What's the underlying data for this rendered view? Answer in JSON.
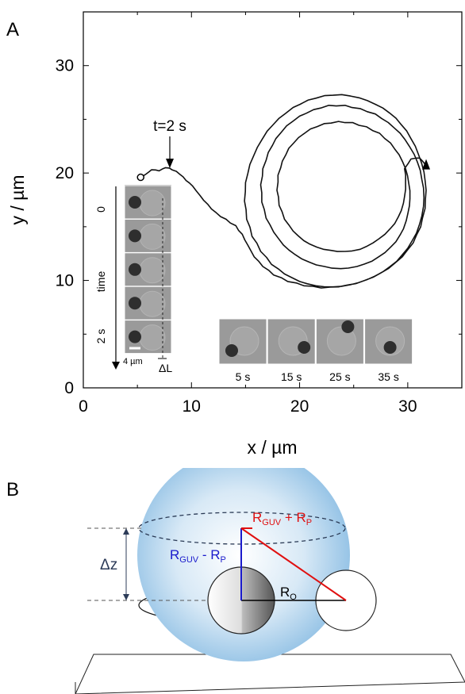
{
  "panel_a": {
    "letter": "A",
    "annotation_time": "t=2 s",
    "left_strip": {
      "top_label": "0",
      "middle_label": "time",
      "bottom_label": "2 s",
      "scale_bar": "4 µm",
      "delta": "ΔL"
    },
    "bottom_frames": [
      "5 s",
      "15 s",
      "25 s",
      "35 s"
    ]
  },
  "panel_b": {
    "letter": "B",
    "delta_z": "Δz",
    "r_sum": {
      "main": "R",
      "sub1": "GUV",
      "mid": " + R",
      "sub2": "P"
    },
    "r_diff": {
      "main": "R",
      "sub1": "GUV",
      "mid": " - R",
      "sub2": "P"
    },
    "r_o": {
      "main": "R",
      "sub": "O"
    }
  },
  "chart_data": {
    "type": "line",
    "title": "",
    "xlabel": "x / µm",
    "ylabel": "y / µm",
    "xlim": [
      0,
      35
    ],
    "ylim": [
      0,
      35
    ],
    "xticks": [
      "0",
      "10",
      "20",
      "30"
    ],
    "yticks": [
      "0",
      "10",
      "20",
      "30"
    ],
    "series": [
      {
        "points": [
          [
            5.3,
            19.6
          ],
          [
            5.8,
            19.9
          ],
          [
            6.3,
            20.3
          ],
          [
            7,
            20.2
          ],
          [
            7.6,
            20.5
          ],
          [
            8.2,
            20.3
          ],
          [
            8.9,
            19.9
          ],
          [
            9.5,
            19.3
          ],
          [
            10.1,
            18.8
          ],
          [
            10.8,
            17.9
          ],
          [
            11.5,
            17.1
          ],
          [
            12.3,
            16.3
          ],
          [
            13.2,
            15.7
          ],
          [
            14.1,
            15.1
          ],
          [
            14.7,
            14.3
          ],
          [
            15.2,
            13.3
          ],
          [
            15.8,
            12.2
          ],
          [
            16.6,
            11.3
          ],
          [
            17.6,
            10.5
          ],
          [
            18.9,
            9.9
          ],
          [
            20.4,
            9.5
          ],
          [
            22,
            9.3
          ],
          [
            23.6,
            9.4
          ],
          [
            25.2,
            9.7
          ],
          [
            26.8,
            10.3
          ],
          [
            28.2,
            11.1
          ],
          [
            29.5,
            12.2
          ],
          [
            30.5,
            13.5
          ],
          [
            31.2,
            15
          ],
          [
            31.6,
            16.7
          ],
          [
            31.7,
            18.4
          ],
          [
            31.5,
            20.1
          ],
          [
            31,
            21.7
          ],
          [
            30.3,
            23.2
          ],
          [
            29.4,
            24.5
          ],
          [
            28.3,
            25.6
          ],
          [
            27,
            26.4
          ],
          [
            25.5,
            27
          ],
          [
            23.9,
            27.3
          ],
          [
            22.3,
            27.2
          ],
          [
            20.8,
            26.8
          ],
          [
            19.4,
            26.1
          ],
          [
            18.1,
            25.1
          ],
          [
            17,
            23.9
          ],
          [
            16.1,
            22.4
          ],
          [
            15.4,
            20.8
          ],
          [
            15,
            19.1
          ],
          [
            14.9,
            17.4
          ],
          [
            15.1,
            15.7
          ],
          [
            15.6,
            14.1
          ],
          [
            16.4,
            12.7
          ],
          [
            17.4,
            11.5
          ],
          [
            18.6,
            10.6
          ],
          [
            20,
            9.9
          ],
          [
            21.5,
            9.5
          ],
          [
            23.1,
            9.4
          ],
          [
            24.7,
            9.6
          ],
          [
            26.3,
            10.1
          ],
          [
            27.7,
            10.8
          ],
          [
            29,
            11.8
          ],
          [
            30,
            13
          ],
          [
            30.8,
            14.4
          ],
          [
            31.3,
            16
          ],
          [
            31.5,
            17.7
          ],
          [
            31.3,
            19.4
          ],
          [
            30.9,
            21
          ],
          [
            30.2,
            22.4
          ],
          [
            29.3,
            23.7
          ],
          [
            28.2,
            24.7
          ],
          [
            27,
            25.5
          ],
          [
            25.6,
            26
          ],
          [
            24.2,
            26.3
          ],
          [
            22.7,
            26.3
          ],
          [
            21.3,
            25.9
          ],
          [
            20,
            25.3
          ],
          [
            18.8,
            24.4
          ],
          [
            17.8,
            23.2
          ],
          [
            17.1,
            21.9
          ],
          [
            16.6,
            20.4
          ],
          [
            16.4,
            18.9
          ],
          [
            16.5,
            17.3
          ],
          [
            16.9,
            15.8
          ],
          [
            17.6,
            14.5
          ],
          [
            18.5,
            13.3
          ],
          [
            19.6,
            12.4
          ],
          [
            20.9,
            11.7
          ],
          [
            22.3,
            11.3
          ],
          [
            23.8,
            11.1
          ],
          [
            25.3,
            11.3
          ],
          [
            26.7,
            11.8
          ],
          [
            27.9,
            12.6
          ],
          [
            28.9,
            13.6
          ],
          [
            29.6,
            14.8
          ],
          [
            30,
            16.2
          ],
          [
            30.2,
            17.6
          ],
          [
            30.1,
            19
          ],
          [
            29.8,
            20.4
          ],
          [
            29.2,
            21.7
          ],
          [
            28.4,
            22.8
          ],
          [
            27.4,
            23.7
          ],
          [
            26.2,
            24.3
          ],
          [
            24.9,
            24.7
          ],
          [
            23.6,
            24.8
          ],
          [
            22.3,
            24.6
          ],
          [
            21,
            24.1
          ],
          [
            19.9,
            23.3
          ],
          [
            19,
            22.3
          ],
          [
            18.4,
            21.1
          ],
          [
            18,
            19.8
          ],
          [
            17.9,
            18.4
          ],
          [
            18.1,
            17
          ],
          [
            18.6,
            15.7
          ],
          [
            19.4,
            14.6
          ],
          [
            20.4,
            13.7
          ],
          [
            21.6,
            13.1
          ],
          [
            22.9,
            12.8
          ],
          [
            24.2,
            12.7
          ],
          [
            25.6,
            12.9
          ],
          [
            26.8,
            13.5
          ],
          [
            27.9,
            14.3
          ],
          [
            28.8,
            15.3
          ],
          [
            29.4,
            16.5
          ],
          [
            29.7,
            17.8
          ],
          [
            29.8,
            19.1
          ],
          [
            29.7,
            20.4
          ],
          [
            30.3,
            21.3
          ],
          [
            31.1,
            21.4
          ],
          [
            31.7,
            20.7
          ]
        ],
        "start_marker": [
          5.3,
          19.6
        ],
        "end_arrow": [
          31.7,
          20.7
        ]
      }
    ]
  }
}
